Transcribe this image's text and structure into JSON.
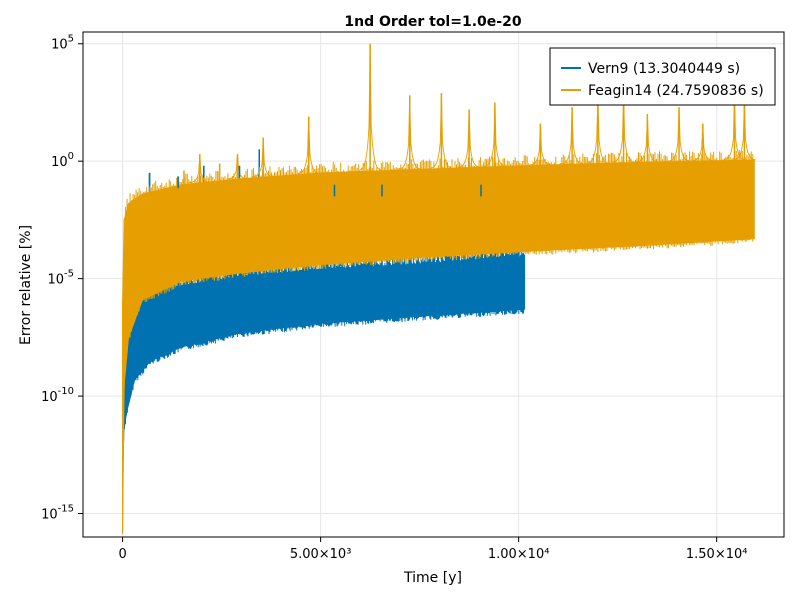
{
  "chart_data": {
    "type": "line",
    "title": "1nd Order tol=1.0e-20",
    "xlabel": "Time [y]",
    "ylabel": "Error relative [%]",
    "y_scale": "log10",
    "xlim": [
      -1000,
      16700
    ],
    "ylim_log10": [
      -16,
      5.5
    ],
    "grid": true,
    "legend_position": "top-right",
    "x_ticks": [
      {
        "value": 0,
        "label": "0"
      },
      {
        "value": 5000,
        "label": "5.00×10³"
      },
      {
        "value": 10000,
        "label": "1.00×10⁴"
      },
      {
        "value": 15000,
        "label": "1.50×10⁴"
      }
    ],
    "y_ticks": [
      {
        "value": -15,
        "base": "10",
        "exp": "-15"
      },
      {
        "value": -10,
        "base": "10",
        "exp": "-10"
      },
      {
        "value": -5,
        "base": "10",
        "exp": "-5"
      },
      {
        "value": 0,
        "base": "10",
        "exp": "0"
      },
      {
        "value": 5,
        "base": "10",
        "exp": "5"
      }
    ],
    "series": [
      {
        "name": "Vern9 (13.3040449 s)",
        "color": "#0072b2",
        "x_end": 10150,
        "lower_envelope_log10": [
          [
            0,
            -13.6
          ],
          [
            30,
            -11.5
          ],
          [
            100,
            -10.7
          ],
          [
            300,
            -9.3
          ],
          [
            700,
            -8.5
          ],
          [
            1500,
            -7.9
          ],
          [
            3000,
            -7.3
          ],
          [
            5000,
            -6.9
          ],
          [
            7500,
            -6.6
          ],
          [
            10150,
            -6.3
          ]
        ],
        "upper_envelope_log10": [
          [
            0,
            -12.8
          ],
          [
            30,
            -7.5
          ],
          [
            100,
            -6.5
          ],
          [
            300,
            -5.9
          ],
          [
            700,
            -5.6
          ],
          [
            1500,
            -5.3
          ],
          [
            3000,
            -4.9
          ],
          [
            5000,
            -4.6
          ],
          [
            7500,
            -4.4
          ],
          [
            10150,
            -4.0
          ]
        ],
        "spikes_log10": [
          [
            680,
            -0.5
          ],
          [
            1400,
            -0.65
          ],
          [
            2050,
            -0.2
          ],
          [
            2950,
            -0.2
          ],
          [
            3450,
            0.5
          ],
          [
            5350,
            -1.0
          ],
          [
            6550,
            -1.0
          ],
          [
            9050,
            -1.0
          ]
        ]
      },
      {
        "name": "Feagin14 (24.7590836 s)",
        "color": "#e69f00",
        "x_end": 15950,
        "lower_envelope_log10": [
          [
            0,
            -15.8
          ],
          [
            40,
            -9.5
          ],
          [
            150,
            -7.5
          ],
          [
            500,
            -5.9
          ],
          [
            1500,
            -5.1
          ],
          [
            3000,
            -4.75
          ],
          [
            5000,
            -4.4
          ],
          [
            7500,
            -4.1
          ],
          [
            10000,
            -3.85
          ],
          [
            13000,
            -3.6
          ],
          [
            15950,
            -3.3
          ]
        ],
        "upper_envelope_log10": [
          [
            0,
            -6.0
          ],
          [
            40,
            -2.5
          ],
          [
            150,
            -1.8
          ],
          [
            500,
            -1.4
          ],
          [
            1500,
            -1.0
          ],
          [
            3000,
            -0.75
          ],
          [
            5000,
            -0.5
          ],
          [
            7500,
            -0.35
          ],
          [
            10000,
            -0.2
          ],
          [
            13000,
            -0.05
          ],
          [
            15950,
            0.05
          ]
        ],
        "spikes_log10": [
          [
            6250,
            5.0
          ],
          [
            4700,
            1.9
          ],
          [
            3550,
            1.0
          ],
          [
            7250,
            2.8
          ],
          [
            8050,
            2.9
          ],
          [
            8750,
            2.2
          ],
          [
            9400,
            2.5
          ],
          [
            10550,
            1.6
          ],
          [
            11350,
            2.3
          ],
          [
            12000,
            2.8
          ],
          [
            12650,
            2.9
          ],
          [
            13250,
            2.0
          ],
          [
            14050,
            2.3
          ],
          [
            14650,
            1.6
          ],
          [
            15450,
            2.7
          ],
          [
            15700,
            2.6
          ],
          [
            1950,
            0.3
          ],
          [
            2900,
            0.3
          ],
          [
            2450,
            -0.1
          ],
          [
            1550,
            -0.4
          ]
        ]
      }
    ]
  }
}
